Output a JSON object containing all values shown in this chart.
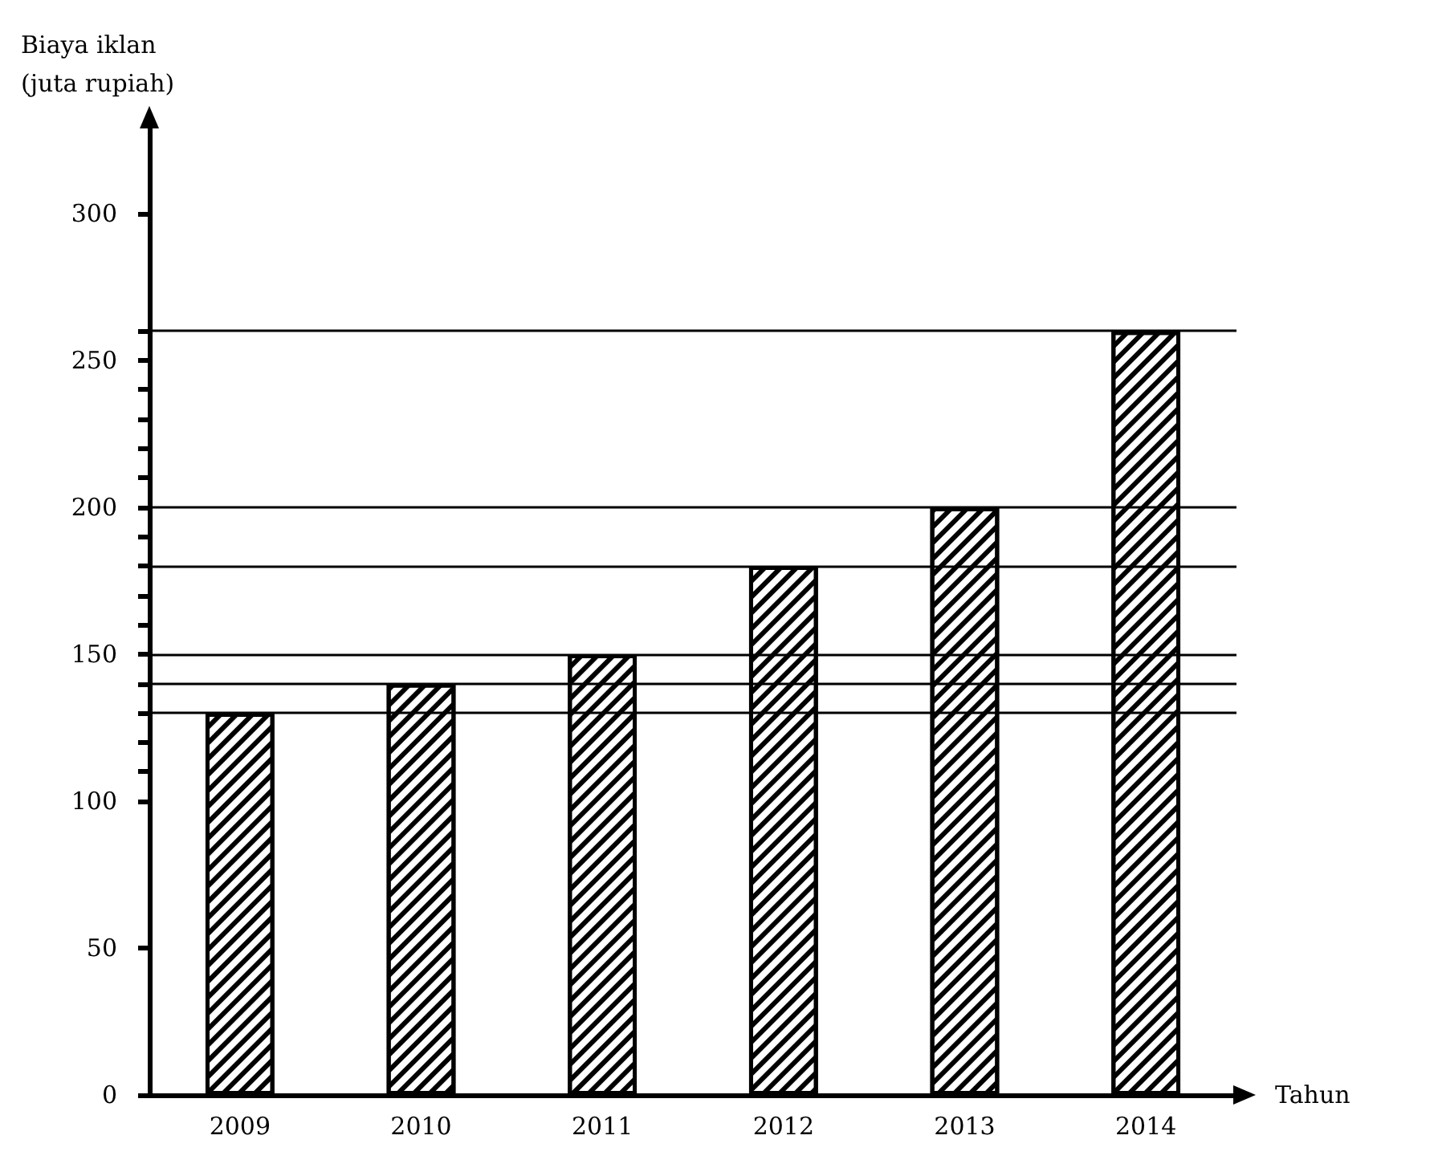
{
  "chart_data": {
    "type": "bar",
    "categories": [
      "2009",
      "2010",
      "2011",
      "2012",
      "2013",
      "2014"
    ],
    "values": [
      130,
      140,
      150,
      180,
      200,
      260
    ],
    "color": "#ffffff",
    "xlabel": "Tahun",
    "ylabel": "Biaya iklan\n(juta rupiah)",
    "ylim": [
      0,
      330
    ],
    "yticks": [
      0,
      50,
      100,
      {
        "value": 110,
        "label": null
      },
      {
        "value": 120,
        "label": null
      },
      {
        "value": 130,
        "label": null
      },
      {
        "value": 140,
        "label": null
      },
      150,
      {
        "value": 160,
        "label": null
      },
      {
        "value": 170,
        "label": null
      },
      {
        "value": 180,
        "label": null
      },
      {
        "value": 190,
        "label": null
      },
      200,
      {
        "value": 210,
        "label": null
      },
      {
        "value": 220,
        "label": null
      },
      {
        "value": 230,
        "label": null
      },
      {
        "value": 240,
        "label": null
      },
      250,
      {
        "value": 260,
        "label": null
      },
      300
    ],
    "ref_lines": [
      {
        "axis": "y",
        "value": 130,
        "color": "#000000"
      },
      {
        "axis": "y",
        "value": 140,
        "color": "#000000"
      },
      {
        "axis": "y",
        "value": 150,
        "color": "#000000"
      },
      {
        "axis": "y",
        "value": 180,
        "color": "#000000"
      },
      {
        "axis": "y",
        "value": 200,
        "color": "#000000"
      },
      {
        "axis": "y",
        "value": 260,
        "color": "#000000"
      }
    ],
    "grid": false
  }
}
